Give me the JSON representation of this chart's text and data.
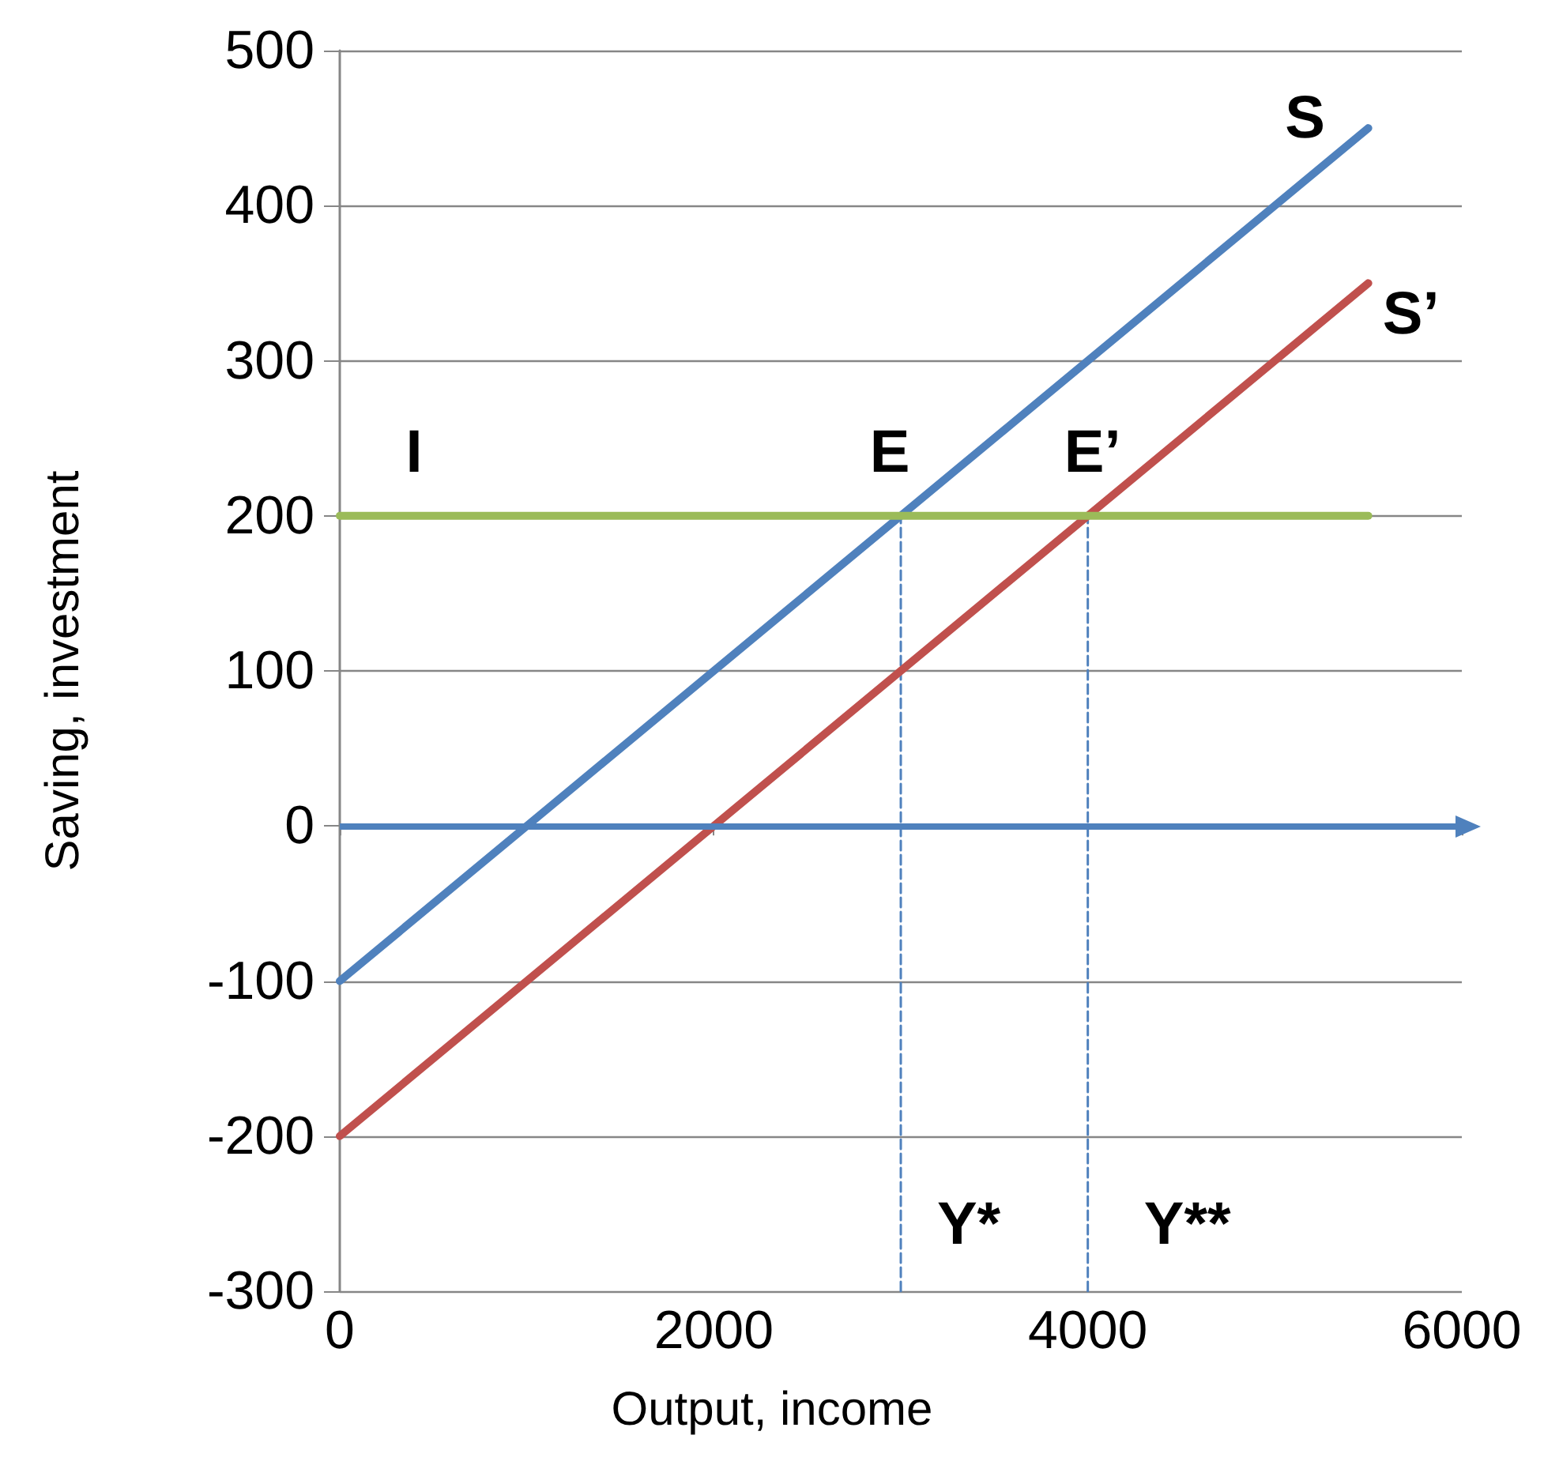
{
  "chart_data": {
    "type": "line",
    "xlabel": "Output, income",
    "ylabel": "Saving, investment",
    "xlim": [
      0,
      6000
    ],
    "xticks": [
      0,
      2000,
      4000,
      6000
    ],
    "ylim": [
      -300,
      500
    ],
    "yticks": [
      -300,
      -200,
      -100,
      0,
      100,
      200,
      300,
      400,
      500
    ],
    "grid": "y",
    "marker": "none",
    "series": [
      {
        "color": "#4f81bd",
        "x": [
          0,
          5500
        ],
        "values": [
          -100,
          450
        ]
      },
      {
        "color": "#c0504d",
        "x": [
          0,
          5500
        ],
        "values": [
          -200,
          350
        ]
      },
      {
        "color": "#9bbb59",
        "x": [
          0,
          5500
        ],
        "values": [
          200,
          200
        ]
      },
      {
        "color": "#4f81bd",
        "x": [
          3000,
          3000
        ],
        "values": [
          -300,
          200
        ],
        "line_style": "dashed"
      },
      {
        "color": "#4f81bd",
        "x": [
          4000,
          4000
        ],
        "values": [
          -300,
          200
        ],
        "line_style": "dashed"
      }
    ],
    "annotations": [
      {
        "text": "S",
        "x": 5500,
        "y": 450
      },
      {
        "text": "S’",
        "x": 5500,
        "y": 350
      },
      {
        "text": "I",
        "x": 0,
        "y": 200
      },
      {
        "text": "E",
        "x": 3000,
        "y": 200
      },
      {
        "text": "E’",
        "x": 4000,
        "y": 200
      },
      {
        "text": "Y*",
        "x": 3000,
        "y": -300
      },
      {
        "text": "Y**",
        "x": 4000,
        "y": -300
      }
    ],
    "ref_lines": [
      {
        "axis": "y",
        "value": 0,
        "color": "#4f81bd"
      }
    ]
  }
}
